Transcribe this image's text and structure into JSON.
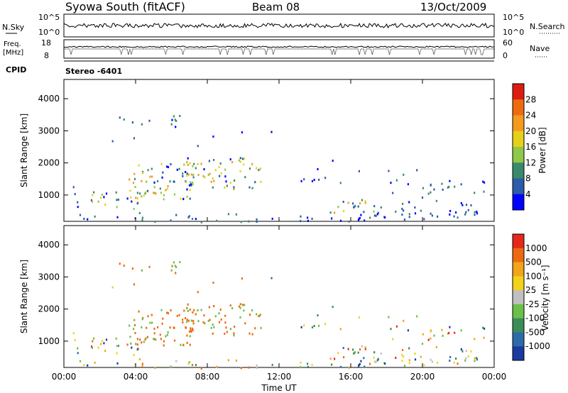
{
  "header": {
    "title": "Syowa South (fitACF)",
    "beam": "Beam 08",
    "date": "13/Oct/2009"
  },
  "top_panels": {
    "nsky_label": "N.Sky",
    "nsky_ticks": [
      "10^5",
      "10^0"
    ],
    "nsearch_label": "N.Search",
    "nsearch_ticks": [
      "10^5",
      "10^0"
    ],
    "freq_label_1": "Freq.",
    "freq_label_2": "[MHz]",
    "freq_ticks": [
      "18",
      "8"
    ],
    "nave_label": "Nave",
    "nave_ticks": [
      "60",
      "0"
    ],
    "cpid_label": "CPID",
    "cpid_value": "Stereo -6401"
  },
  "colors": {
    "power_scale": [
      "#0000ff",
      "#2a5caa",
      "#3a8a6a",
      "#8ec94a",
      "#e6d11a",
      "#f39a1f",
      "#ee6a10",
      "#dd1c10"
    ],
    "velocity_scale": [
      "#1a3aa0",
      "#2e6aaa",
      "#3c8c5a",
      "#6ac04a",
      "#c0c0c0",
      "#f2d21a",
      "#f2a41a",
      "#ee6a10",
      "#e6281a"
    ]
  },
  "chart_data": [
    {
      "type": "heatmap",
      "title": "Power",
      "ylabel": "Slant Range [km]",
      "xlabel": "",
      "x_ticks": [
        "00:00",
        "04:00",
        "08:00",
        "12:00",
        "16:00",
        "20:00",
        "00:00"
      ],
      "xlim_hours": [
        0,
        24
      ],
      "ylim": [
        180,
        4600
      ],
      "y_ticks": [
        1000,
        2000,
        3000,
        4000
      ],
      "colorbar_label": "Power [dB]",
      "colorbar_ticks": [
        "4",
        "8",
        "12",
        "16",
        "20",
        "24",
        "28"
      ]
    },
    {
      "type": "heatmap",
      "title": "Velocity",
      "ylabel": "Slant Range [km]",
      "xlabel": "Time UT",
      "x_ticks": [
        "00:00",
        "04:00",
        "08:00",
        "12:00",
        "16:00",
        "20:00",
        "00:00"
      ],
      "xlim_hours": [
        0,
        24
      ],
      "ylim": [
        180,
        4600
      ],
      "y_ticks": [
        1000,
        2000,
        3000,
        4000
      ],
      "colorbar_label": "Velocity [m s⁻¹]",
      "colorbar_ticks": [
        "1000",
        "500",
        "100",
        "25",
        "-25",
        "-100",
        "-500",
        "-1000"
      ]
    }
  ]
}
